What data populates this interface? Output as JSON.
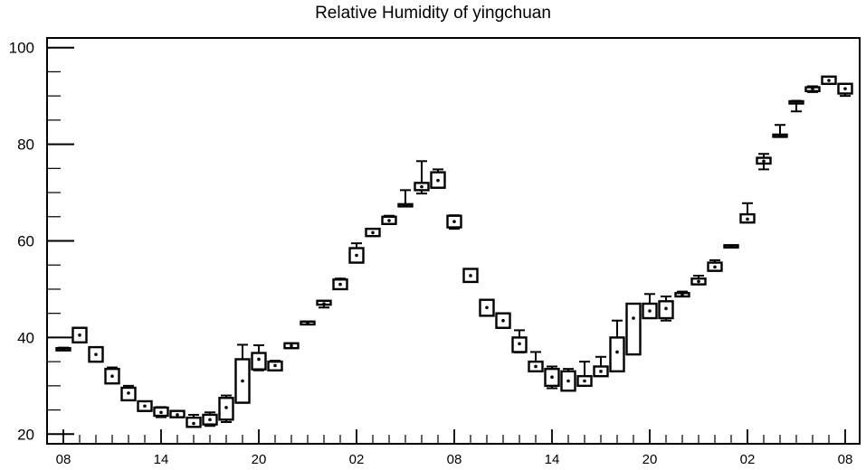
{
  "chart_data": {
    "type": "box",
    "title": "Relative Humidity of yingchuan",
    "xlabel": "",
    "ylabel": "",
    "ylim": [
      18,
      102
    ],
    "y_ticks": [
      20,
      40,
      60,
      80,
      100
    ],
    "x_tick_labels": [
      "08",
      "14",
      "20",
      "02",
      "08",
      "14",
      "20",
      "02",
      "08"
    ],
    "x_tick_hours": [
      0,
      6,
      12,
      18,
      24,
      30,
      36,
      42,
      48
    ],
    "grid": false,
    "series": [
      {
        "boxes": [
          {
            "hour": 0,
            "min": 37.6,
            "q1": 37.6,
            "median": 37.7,
            "q3": 37.8,
            "max": 37.9
          },
          {
            "hour": 1,
            "min": 39.0,
            "q1": 39.0,
            "median": 40.5,
            "q3": 42.0,
            "max": 42.0
          },
          {
            "hour": 2,
            "min": 35.0,
            "q1": 35.0,
            "median": 36.5,
            "q3": 38.0,
            "max": 38.0
          },
          {
            "hour": 3,
            "min": 30.5,
            "q1": 30.5,
            "median": 32.0,
            "q3": 33.5,
            "max": 33.8
          },
          {
            "hour": 4,
            "min": 27.0,
            "q1": 27.0,
            "median": 28.5,
            "q3": 29.6,
            "max": 30.0
          },
          {
            "hour": 5,
            "min": 24.8,
            "q1": 24.8,
            "median": 25.8,
            "q3": 26.8,
            "max": 26.8
          },
          {
            "hour": 6,
            "min": 23.5,
            "q1": 23.8,
            "median": 24.5,
            "q3": 25.5,
            "max": 25.6
          },
          {
            "hour": 7,
            "min": 23.5,
            "q1": 23.5,
            "median": 24.0,
            "q3": 24.8,
            "max": 24.8
          },
          {
            "hour": 8,
            "min": 21.5,
            "q1": 21.5,
            "median": 22.2,
            "q3": 23.4,
            "max": 24.0
          },
          {
            "hour": 9,
            "min": 21.7,
            "q1": 22.0,
            "median": 23.0,
            "q3": 24.0,
            "max": 24.5
          },
          {
            "hour": 10,
            "min": 22.5,
            "q1": 23.0,
            "median": 25.5,
            "q3": 27.5,
            "max": 28.0
          },
          {
            "hour": 11,
            "min": 26.5,
            "q1": 26.5,
            "median": 31.0,
            "q3": 35.5,
            "max": 38.5
          },
          {
            "hour": 12,
            "min": 33.2,
            "q1": 33.4,
            "median": 35.5,
            "q3": 36.8,
            "max": 38.4
          },
          {
            "hour": 13,
            "min": 33.2,
            "q1": 33.2,
            "median": 34.2,
            "q3": 35.0,
            "max": 35.2
          },
          {
            "hour": 14,
            "min": 37.8,
            "q1": 37.8,
            "median": 38.3,
            "q3": 38.8,
            "max": 38.8
          },
          {
            "hour": 15,
            "min": 42.7,
            "q1": 42.7,
            "median": 43.0,
            "q3": 43.3,
            "max": 43.3
          },
          {
            "hour": 16,
            "min": 46.2,
            "q1": 46.8,
            "median": 47.0,
            "q3": 47.6,
            "max": 47.6
          },
          {
            "hour": 17,
            "min": 50.0,
            "q1": 50.0,
            "median": 51.0,
            "q3": 52.0,
            "max": 52.2
          },
          {
            "hour": 18,
            "min": 55.5,
            "q1": 55.5,
            "median": 57.0,
            "q3": 58.5,
            "max": 59.5
          },
          {
            "hour": 19,
            "min": 61.0,
            "q1": 61.0,
            "median": 61.7,
            "q3": 62.5,
            "max": 62.5
          },
          {
            "hour": 20,
            "min": 63.5,
            "q1": 63.5,
            "median": 64.2,
            "q3": 65.0,
            "max": 65.2
          },
          {
            "hour": 21,
            "min": 67.2,
            "q1": 67.2,
            "median": 67.4,
            "q3": 67.6,
            "max": 70.5
          },
          {
            "hour": 22,
            "min": 69.8,
            "q1": 70.5,
            "median": 71.2,
            "q3": 72.0,
            "max": 76.5
          },
          {
            "hour": 23,
            "min": 71.0,
            "q1": 71.0,
            "median": 72.5,
            "q3": 74.2,
            "max": 74.8
          },
          {
            "hour": 24,
            "min": 62.5,
            "q1": 62.8,
            "median": 64.0,
            "q3": 65.2,
            "max": 65.3
          },
          {
            "hour": 25,
            "min": 51.5,
            "q1": 51.5,
            "median": 52.8,
            "q3": 54.2,
            "max": 54.2
          },
          {
            "hour": 26,
            "min": 44.5,
            "q1": 44.5,
            "median": 46.2,
            "q3": 47.8,
            "max": 47.8
          },
          {
            "hour": 27,
            "min": 42.0,
            "q1": 42.0,
            "median": 43.5,
            "q3": 45.0,
            "max": 45.0
          },
          {
            "hour": 28,
            "min": 36.9,
            "q1": 37.0,
            "median": 38.7,
            "q3": 40.0,
            "max": 41.5
          },
          {
            "hour": 29,
            "min": 33.0,
            "q1": 33.0,
            "median": 34.0,
            "q3": 35.0,
            "max": 37.0
          },
          {
            "hour": 30,
            "min": 29.5,
            "q1": 30.0,
            "median": 31.8,
            "q3": 33.5,
            "max": 34.0
          },
          {
            "hour": 31,
            "min": 29.0,
            "q1": 29.0,
            "median": 31.0,
            "q3": 33.0,
            "max": 33.5
          },
          {
            "hour": 32,
            "min": 30.0,
            "q1": 30.0,
            "median": 31.0,
            "q3": 32.0,
            "max": 35.0
          },
          {
            "hour": 33,
            "min": 32.0,
            "q1": 32.0,
            "median": 33.0,
            "q3": 34.0,
            "max": 36.0
          },
          {
            "hour": 34,
            "min": 33.0,
            "q1": 33.0,
            "median": 37.0,
            "q3": 40.0,
            "max": 43.5
          },
          {
            "hour": 35,
            "min": 36.5,
            "q1": 36.5,
            "median": 44.0,
            "q3": 47.0,
            "max": 47.0
          },
          {
            "hour": 36,
            "min": 44.0,
            "q1": 44.0,
            "median": 45.5,
            "q3": 47.0,
            "max": 49.0
          },
          {
            "hour": 37,
            "min": 43.5,
            "q1": 44.0,
            "median": 46.0,
            "q3": 47.5,
            "max": 48.5
          },
          {
            "hour": 38,
            "min": 48.5,
            "q1": 48.5,
            "median": 48.8,
            "q3": 49.2,
            "max": 49.5
          },
          {
            "hour": 39,
            "min": 51.0,
            "q1": 51.0,
            "median": 51.6,
            "q3": 52.2,
            "max": 52.8
          },
          {
            "hour": 40,
            "min": 53.8,
            "q1": 53.8,
            "median": 54.6,
            "q3": 55.5,
            "max": 56.0
          },
          {
            "hour": 41,
            "min": 58.7,
            "q1": 58.7,
            "median": 58.9,
            "q3": 59.1,
            "max": 59.1
          },
          {
            "hour": 42,
            "min": 63.8,
            "q1": 63.8,
            "median": 64.5,
            "q3": 65.5,
            "max": 67.8
          },
          {
            "hour": 43,
            "min": 74.8,
            "q1": 76.0,
            "median": 76.5,
            "q3": 77.2,
            "max": 78.0
          },
          {
            "hour": 44,
            "min": 81.5,
            "q1": 81.6,
            "median": 81.8,
            "q3": 82.0,
            "max": 84.0
          },
          {
            "hour": 45,
            "min": 86.8,
            "q1": 88.7,
            "median": 88.8,
            "q3": 88.9,
            "max": 89.0
          },
          {
            "hour": 46,
            "min": 90.8,
            "q1": 91.0,
            "median": 91.5,
            "q3": 91.8,
            "max": 92.0
          },
          {
            "hour": 47,
            "min": 92.5,
            "q1": 92.5,
            "median": 93.2,
            "q3": 94.0,
            "max": 94.0
          },
          {
            "hour": 48,
            "min": 90.0,
            "q1": 90.5,
            "median": 91.5,
            "q3": 92.5,
            "max": 92.5
          }
        ]
      }
    ]
  }
}
